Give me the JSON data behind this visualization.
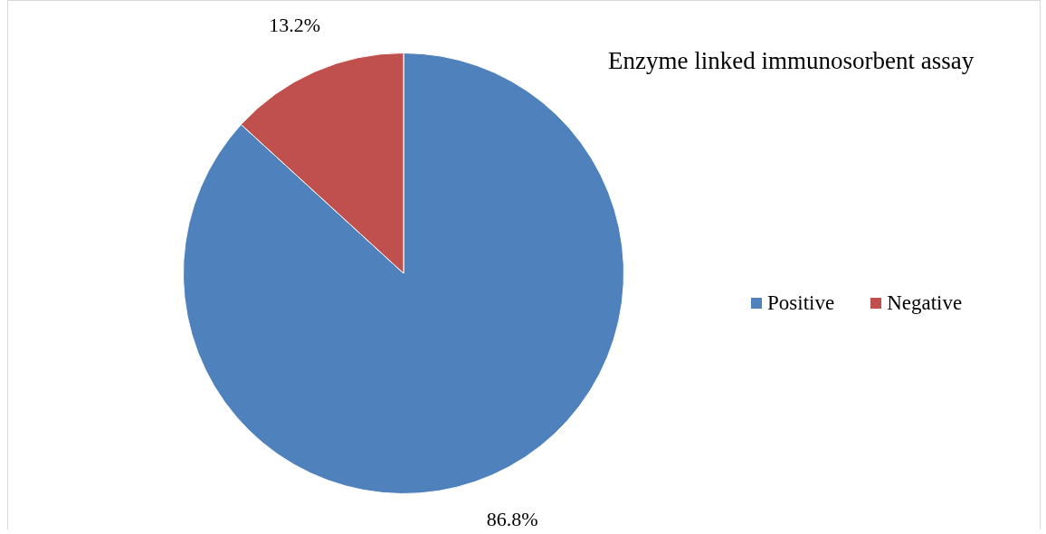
{
  "chart_data": {
    "type": "pie",
    "title": "Enzyme linked immunosorbent assay",
    "categories": [
      "Positive",
      "Negative"
    ],
    "values": [
      86.8,
      13.2
    ],
    "colors": [
      "#4f81bd",
      "#c0504d"
    ],
    "value_labels": [
      "86.8%",
      "13.2%"
    ],
    "legend": "right"
  }
}
